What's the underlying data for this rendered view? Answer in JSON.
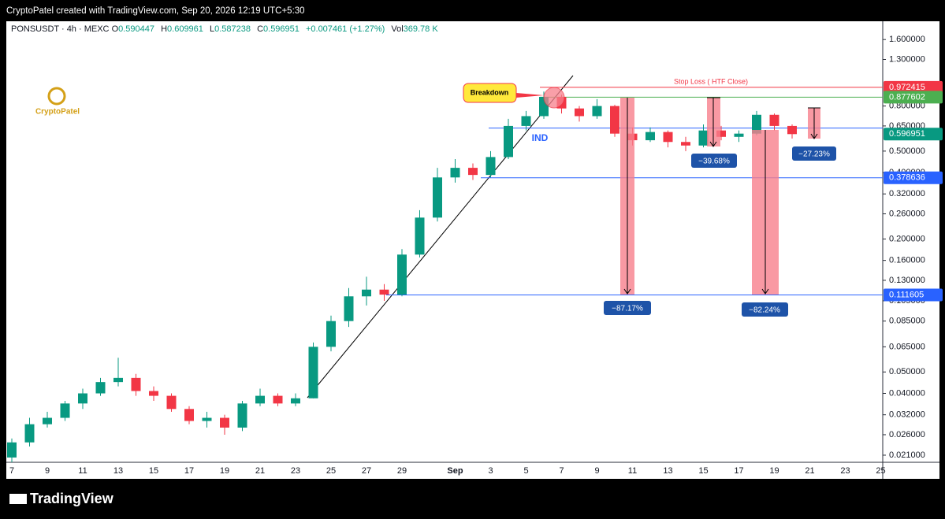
{
  "header": {
    "text": "CryptoPatel created with TradingView.com, Sep 20, 2026 12:19 UTC+5:30"
  },
  "legend": {
    "symbol": "PONSUSDT · 4h · MEXC",
    "o_label": "O",
    "o": 0.590447,
    "h_label": "H",
    "h": 0.609961,
    "l_label": "L",
    "l": 0.587238,
    "c_label": "C",
    "c": 0.596951,
    "change": "+0.007461 (+1.27%)",
    "vol_label": "Vol",
    "vol": "369.78 K"
  },
  "watermark": "CryptoPatel",
  "footer": "TradingView",
  "chart_data": {
    "type": "candlestick",
    "log_scale": true,
    "up_color": "#089981",
    "down_color": "#f23645",
    "categories": [
      "7",
      null,
      "9",
      null,
      "11",
      null,
      "13",
      null,
      "15",
      null,
      "17",
      null,
      "19",
      null,
      "21",
      null,
      "23",
      null,
      "25",
      null,
      "27",
      null,
      "29",
      null,
      null,
      "Sep",
      null,
      "3",
      null,
      "5",
      null,
      "7",
      null,
      "9",
      null,
      "11",
      null,
      "13",
      null,
      "15",
      null,
      "17",
      null,
      "19",
      null,
      "21",
      null,
      "23",
      null,
      "25"
    ],
    "open": [
      0.0205,
      0.024,
      0.029,
      0.031,
      0.036,
      0.04,
      0.045,
      0.047,
      0.041,
      0.039,
      0.034,
      0.03,
      0.031,
      0.028,
      0.036,
      0.039,
      0.036,
      0.038,
      0.065,
      0.085,
      0.11,
      0.118,
      0.112,
      0.17,
      0.25,
      0.38,
      0.42,
      0.39,
      0.47,
      0.65,
      0.72,
      0.88,
      0.78,
      0.72,
      0.8,
      0.6,
      0.56,
      0.61,
      0.55,
      0.53,
      0.62,
      0.58,
      0.6,
      0.73,
      0.65,
      null,
      null,
      null,
      null,
      null
    ],
    "high": [
      0.025,
      0.031,
      0.033,
      0.037,
      0.042,
      0.047,
      0.058,
      0.049,
      0.043,
      0.04,
      0.035,
      0.033,
      0.032,
      0.037,
      0.042,
      0.04,
      0.04,
      0.068,
      0.09,
      0.12,
      0.135,
      0.125,
      0.18,
      0.27,
      0.42,
      0.46,
      0.44,
      0.5,
      0.7,
      0.76,
      0.93,
      0.9,
      0.8,
      0.86,
      0.81,
      0.64,
      0.64,
      0.62,
      0.58,
      0.66,
      0.65,
      0.62,
      0.76,
      0.74,
      0.66,
      null,
      null,
      null,
      null,
      null
    ],
    "low": [
      0.0195,
      0.023,
      0.028,
      0.03,
      0.034,
      0.039,
      0.043,
      0.039,
      0.037,
      0.033,
      0.029,
      0.028,
      0.026,
      0.027,
      0.035,
      0.035,
      0.035,
      0.038,
      0.062,
      0.08,
      0.1,
      0.105,
      0.11,
      0.165,
      0.24,
      0.36,
      0.37,
      0.38,
      0.46,
      0.62,
      0.7,
      0.74,
      0.68,
      0.7,
      0.58,
      0.53,
      0.55,
      0.52,
      0.5,
      0.52,
      0.56,
      0.55,
      0.59,
      0.62,
      0.57,
      null,
      null,
      null,
      null,
      null
    ],
    "close": [
      0.024,
      0.029,
      0.031,
      0.036,
      0.04,
      0.045,
      0.047,
      0.041,
      0.039,
      0.034,
      0.03,
      0.031,
      0.028,
      0.036,
      0.039,
      0.036,
      0.038,
      0.065,
      0.085,
      0.11,
      0.118,
      0.112,
      0.17,
      0.25,
      0.38,
      0.42,
      0.39,
      0.47,
      0.65,
      0.72,
      0.88,
      0.78,
      0.72,
      0.8,
      0.6,
      0.56,
      0.61,
      0.55,
      0.53,
      0.62,
      0.58,
      0.6,
      0.73,
      0.65,
      0.596951,
      null,
      null,
      null,
      null,
      null
    ],
    "ylim": [
      0.0195,
      1.92
    ],
    "yticks": [
      {
        "value": 1.6,
        "label": "1.600000"
      },
      {
        "value": 1.3,
        "label": "1.300000"
      },
      {
        "value": 0.8,
        "label": "0.800000"
      },
      {
        "value": 0.65,
        "label": "0.650000"
      },
      {
        "value": 0.5,
        "label": "0.500000"
      },
      {
        "value": 0.4,
        "label": "0.400000"
      },
      {
        "value": 0.32,
        "label": "0.320000"
      },
      {
        "value": 0.26,
        "label": "0.260000"
      },
      {
        "value": 0.2,
        "label": "0.200000"
      },
      {
        "value": 0.16,
        "label": "0.160000"
      },
      {
        "value": 0.13,
        "label": "0.130000"
      },
      {
        "value": 0.105,
        "label": "0.105000"
      },
      {
        "value": 0.085,
        "label": "0.085000"
      },
      {
        "value": 0.065,
        "label": "0.065000"
      },
      {
        "value": 0.05,
        "label": "0.050000"
      },
      {
        "value": 0.04,
        "label": "0.040000"
      },
      {
        "value": 0.032,
        "label": "0.032000"
      },
      {
        "value": 0.026,
        "label": "0.026000"
      },
      {
        "value": 0.021,
        "label": "0.021000"
      }
    ],
    "levels": [
      {
        "value": 0.972415,
        "color": "#f23645"
      },
      {
        "value": 0.877602,
        "color": "#4caf50"
      },
      {
        "value": 0.636,
        "color": "#2962ff"
      },
      {
        "value": 0.596951,
        "color": "#089981"
      },
      {
        "value": 0.378636,
        "color": "#2962ff"
      },
      {
        "value": 0.111605,
        "color": "#2962ff"
      }
    ],
    "annotations": {
      "breakdown": "Breakdown",
      "stop_loss": "Stop Loss ( HTF Close)",
      "ind": "IND",
      "measures": [
        "−87.17%",
        "−82.24%",
        "−39.68%",
        "−27.23%"
      ]
    }
  }
}
